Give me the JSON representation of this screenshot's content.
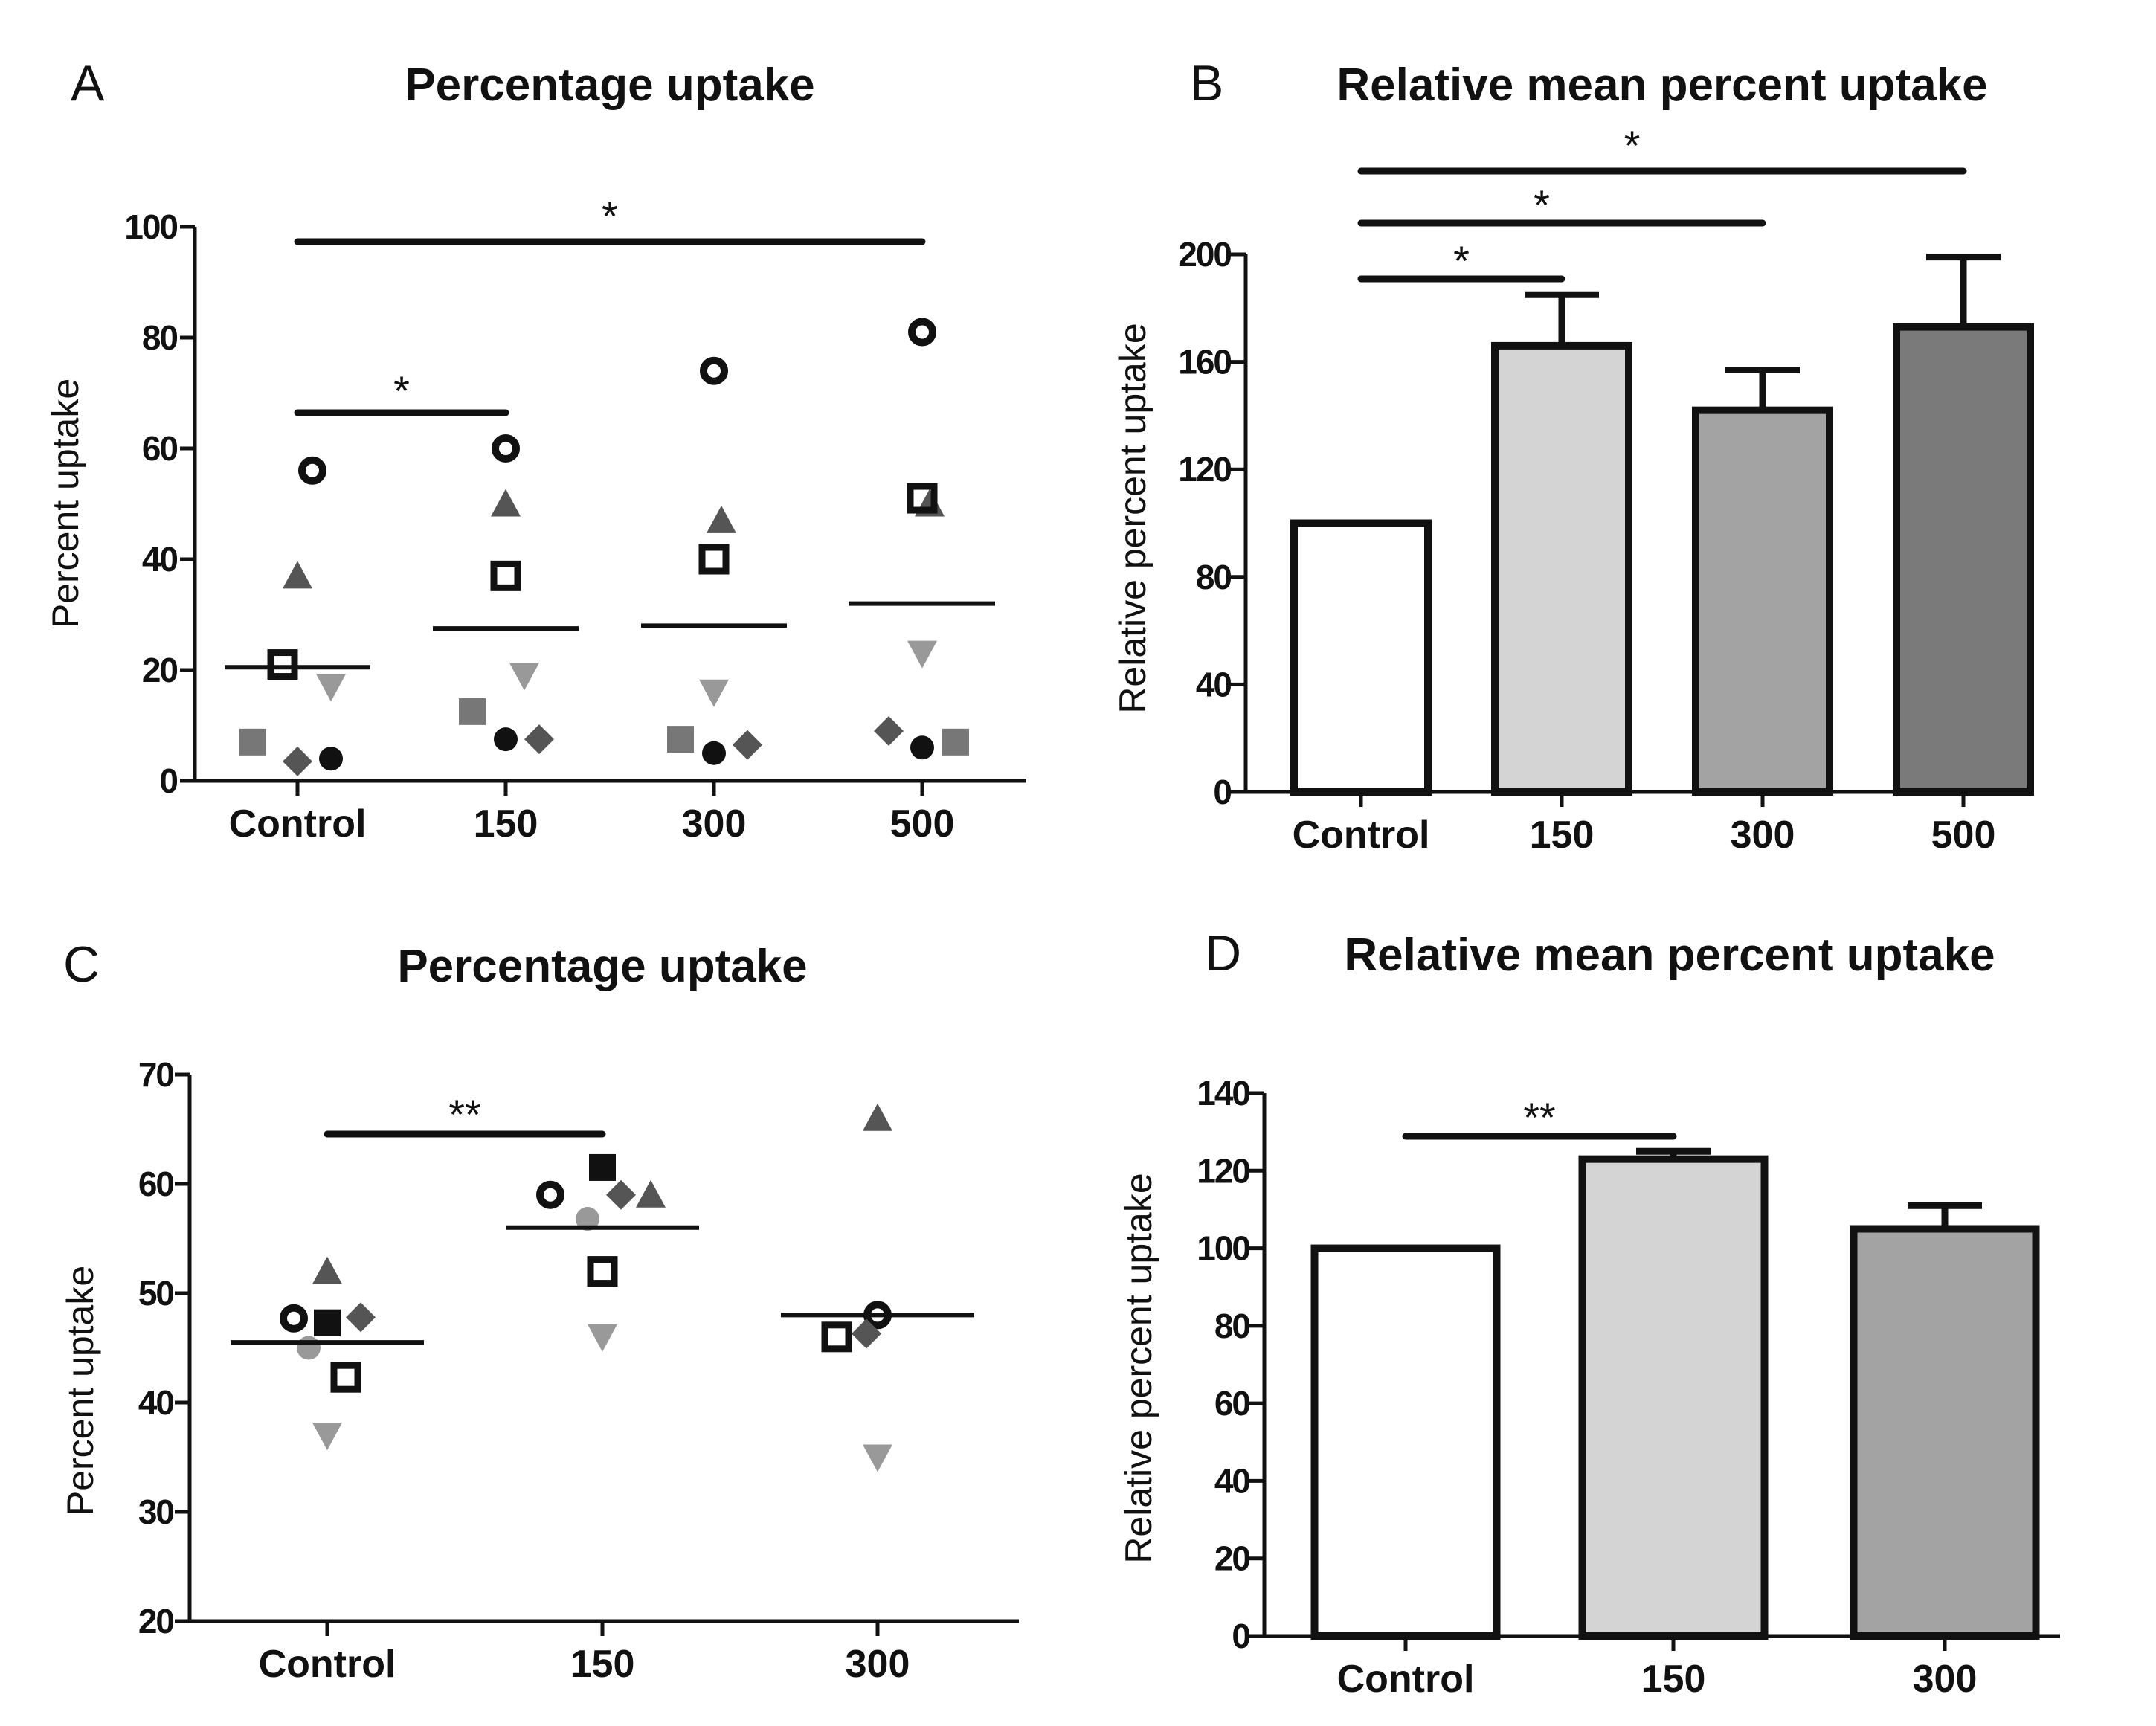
{
  "colors": {
    "black": "#111111",
    "dark_gray": "#555555",
    "mid_gray": "#777777",
    "light_gray": "#999999",
    "bar_control": "#ffffff",
    "bar_150": "#d4d4d4",
    "bar_300": "#a3a3a3",
    "bar_500": "#7a7a7a"
  },
  "chart_data": [
    {
      "id": "A",
      "panel_label": "A",
      "type": "scatter",
      "title": "Percentage uptake",
      "ylabel": "Percent uptake",
      "xlabel": "",
      "ylim": [
        0,
        100
      ],
      "yticks": [
        0,
        20,
        40,
        60,
        80,
        100
      ],
      "categories": [
        "Control",
        "150",
        "300",
        "500"
      ],
      "means": [
        20.5,
        27.5,
        28,
        32
      ],
      "series": [
        {
          "name": "open-circle",
          "marker": "open-circle",
          "color": "#111111",
          "values": [
            56,
            60,
            74,
            81
          ]
        },
        {
          "name": "triangle-up",
          "marker": "triangle-up",
          "color": "#555555",
          "values": [
            37,
            50,
            47,
            50
          ]
        },
        {
          "name": "open-square",
          "marker": "open-square",
          "color": "#111111",
          "values": [
            21,
            37,
            40,
            51
          ]
        },
        {
          "name": "triangle-down",
          "marker": "triangle-down",
          "color": "#999999",
          "values": [
            17,
            19,
            16,
            23
          ]
        },
        {
          "name": "gray-square",
          "marker": "square",
          "color": "#777777",
          "values": [
            7,
            12.5,
            7.5,
            7
          ]
        },
        {
          "name": "diamond",
          "marker": "diamond",
          "color": "#555555",
          "values": [
            3.5,
            7.5,
            6.5,
            9
          ]
        },
        {
          "name": "filled-circle",
          "marker": "circle",
          "color": "#111111",
          "values": [
            4,
            7.5,
            5,
            6
          ]
        }
      ],
      "significance": [
        {
          "from": "Control",
          "to": "150",
          "label": "*"
        },
        {
          "from": "Control",
          "to": "500",
          "label": "*"
        }
      ]
    },
    {
      "id": "B",
      "panel_label": "B",
      "type": "bar",
      "title": "Relative mean percent uptake",
      "ylabel": "Relative percent uptake",
      "xlabel": "",
      "ylim": [
        0,
        200
      ],
      "yticks": [
        0,
        40,
        80,
        120,
        160,
        200
      ],
      "categories": [
        "Control",
        "150",
        "300",
        "500"
      ],
      "values": [
        100,
        166,
        142,
        173
      ],
      "errors": [
        0,
        19,
        15,
        26
      ],
      "significance": [
        {
          "from": "Control",
          "to": "150",
          "label": "*"
        },
        {
          "from": "Control",
          "to": "300",
          "label": "*"
        },
        {
          "from": "Control",
          "to": "500",
          "label": "*"
        }
      ]
    },
    {
      "id": "C",
      "panel_label": "C",
      "type": "scatter",
      "title": "Percentage uptake",
      "ylabel": "Percent uptake",
      "xlabel": "",
      "ylim": [
        20,
        70
      ],
      "yticks": [
        20,
        30,
        40,
        50,
        60,
        70
      ],
      "categories": [
        "Control",
        "150",
        "300"
      ],
      "means": [
        45.5,
        56,
        48
      ],
      "series": [
        {
          "name": "open-circle",
          "marker": "open-circle",
          "color": "#111111",
          "values": [
            47.7,
            59,
            48
          ]
        },
        {
          "name": "triangle-up",
          "marker": "triangle-up",
          "color": "#555555",
          "values": [
            52,
            59,
            66
          ]
        },
        {
          "name": "open-square",
          "marker": "open-square",
          "color": "#111111",
          "values": [
            42.3,
            52,
            46
          ]
        },
        {
          "name": "triangle-down",
          "marker": "triangle-down",
          "color": "#999999",
          "values": [
            37,
            46,
            35
          ]
        },
        {
          "name": "square",
          "marker": "square",
          "color": "#111111",
          "values": [
            47.3,
            61.5,
            null
          ]
        },
        {
          "name": "diamond",
          "marker": "diamond",
          "color": "#555555",
          "values": [
            47.8,
            59,
            46.3
          ]
        },
        {
          "name": "gray-circle",
          "marker": "circle",
          "color": "#999999",
          "values": [
            45,
            56.8,
            null
          ]
        }
      ],
      "significance": [
        {
          "from": "Control",
          "to": "150",
          "label": "**"
        }
      ]
    },
    {
      "id": "D",
      "panel_label": "D",
      "type": "bar",
      "title": "Relative mean percent uptake",
      "ylabel": "Relative percent uptake",
      "xlabel": "",
      "ylim": [
        0,
        140
      ],
      "yticks": [
        0,
        20,
        40,
        60,
        80,
        100,
        120,
        140
      ],
      "categories": [
        "Control",
        "150",
        "300"
      ],
      "values": [
        100,
        123,
        105
      ],
      "errors": [
        0,
        2,
        6
      ],
      "significance": [
        {
          "from": "Control",
          "to": "150",
          "label": "**"
        }
      ]
    }
  ]
}
